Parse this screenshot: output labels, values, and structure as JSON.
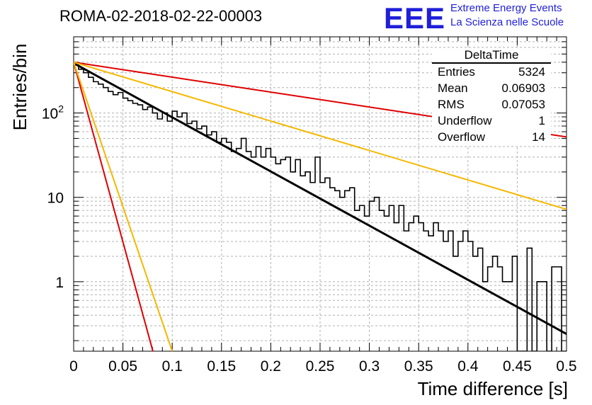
{
  "header": {
    "title": "ROMA-02-2018-02-22-00003",
    "logo_text": "EEE",
    "tagline1": "Extreme Energy Events",
    "tagline2": "La Scienza nelle Scuole"
  },
  "stats_box": {
    "name": "DeltaTime",
    "rows": [
      {
        "label": "Entries",
        "value": "5324"
      },
      {
        "label": "Mean",
        "value": "0.06903"
      },
      {
        "label": "RMS",
        "value": "0.07053"
      },
      {
        "label": "Underflow",
        "value": "1"
      },
      {
        "label": "Overflow",
        "value": "14"
      }
    ]
  },
  "colors": {
    "histogram": "#000000",
    "fit": "#000000",
    "red_band": "#e00000",
    "orange_band": "#f5b800",
    "grid": "#b0b0b0",
    "logo": "#1f1fd9"
  },
  "chart_data": {
    "type": "line",
    "title": "ROMA-02-2018-02-22-00003",
    "xlabel": "Time difference [s]",
    "ylabel": "Entries/bin",
    "xlim": [
      0,
      0.5
    ],
    "ylim": [
      0.15,
      800
    ],
    "y_scale": "log",
    "grid": true,
    "legend": "top-right",
    "x_ticks": [
      "0",
      "0.05",
      "0.1",
      "0.15",
      "0.2",
      "0.25",
      "0.3",
      "0.35",
      "0.4",
      "0.45",
      "0.5"
    ],
    "y_ticks": [
      {
        "value": 1,
        "label": "1"
      },
      {
        "value": 10,
        "label": "10"
      },
      {
        "value": 100,
        "label": "10^2"
      }
    ],
    "histogram": {
      "name": "DeltaTime",
      "bin_width": 0.005,
      "x_start": 0,
      "values": [
        370,
        330,
        300,
        265,
        235,
        220,
        200,
        180,
        165,
        175,
        150,
        140,
        130,
        125,
        110,
        118,
        100,
        85,
        100,
        80,
        105,
        90,
        100,
        75,
        80,
        65,
        70,
        55,
        60,
        45,
        50,
        45,
        35,
        38,
        50,
        35,
        30,
        40,
        30,
        38,
        30,
        25,
        28,
        30,
        20,
        28,
        18,
        20,
        15,
        30,
        15,
        17,
        13,
        12,
        10,
        12,
        13,
        7,
        8,
        6,
        9,
        10,
        7,
        6,
        8,
        5,
        8,
        4,
        5,
        6,
        5,
        4,
        3.5,
        5,
        4,
        3,
        4,
        2,
        3,
        4,
        3,
        2,
        2.5,
        1,
        1.5,
        2,
        1.5,
        1,
        1,
        2,
        0.1,
        0.1,
        2.5,
        0.1,
        1,
        1,
        0.1,
        1.5,
        1.5,
        0.1
      ]
    },
    "fit_lines": [
      {
        "role": "fit",
        "x": [
          0,
          0.5
        ],
        "y": [
          390,
          0.24
        ]
      },
      {
        "role": "red-slow",
        "x": [
          0,
          0.5
        ],
        "y": [
          400,
          52
        ]
      },
      {
        "role": "orange-slow",
        "x": [
          0,
          0.5
        ],
        "y": [
          400,
          7.2
        ]
      },
      {
        "role": "red-fast",
        "x": [
          0,
          0.0804
        ],
        "y": [
          400,
          0.15
        ]
      },
      {
        "role": "orange-fast",
        "x": [
          0,
          0.1
        ],
        "y": [
          400,
          0.15
        ]
      }
    ]
  }
}
